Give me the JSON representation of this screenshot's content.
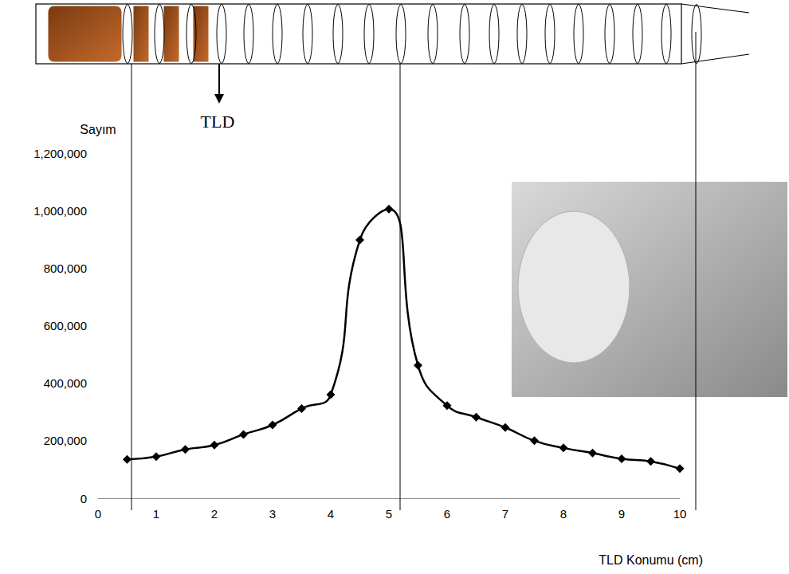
{
  "chart_data": {
    "type": "line",
    "x": [
      0.5,
      1,
      1.5,
      2,
      2.5,
      3,
      3.5,
      4,
      4.5,
      5,
      5.5,
      6,
      6.5,
      7,
      7.5,
      8,
      8.5,
      9,
      9.5,
      10
    ],
    "values": [
      135000,
      145000,
      170000,
      185000,
      222000,
      255000,
      312000,
      360000,
      898000,
      1005000,
      462000,
      322000,
      282000,
      246000,
      200000,
      175000,
      157000,
      137000,
      128000,
      103000
    ],
    "xlim": [
      0,
      10
    ],
    "xticks": [
      0,
      1,
      2,
      3,
      4,
      5,
      6,
      7,
      8,
      9,
      10
    ],
    "ylim": [
      0,
      1200000
    ],
    "yticks": [
      0,
      200000,
      400000,
      600000,
      800000,
      1000000,
      1200000
    ],
    "y_label": "Sayım",
    "x_label": "TLD Konumu (cm)",
    "annotations": [
      "TLD"
    ],
    "color": "#000000",
    "marker": "diamond",
    "line_style": "smooth",
    "grid": false
  }
}
